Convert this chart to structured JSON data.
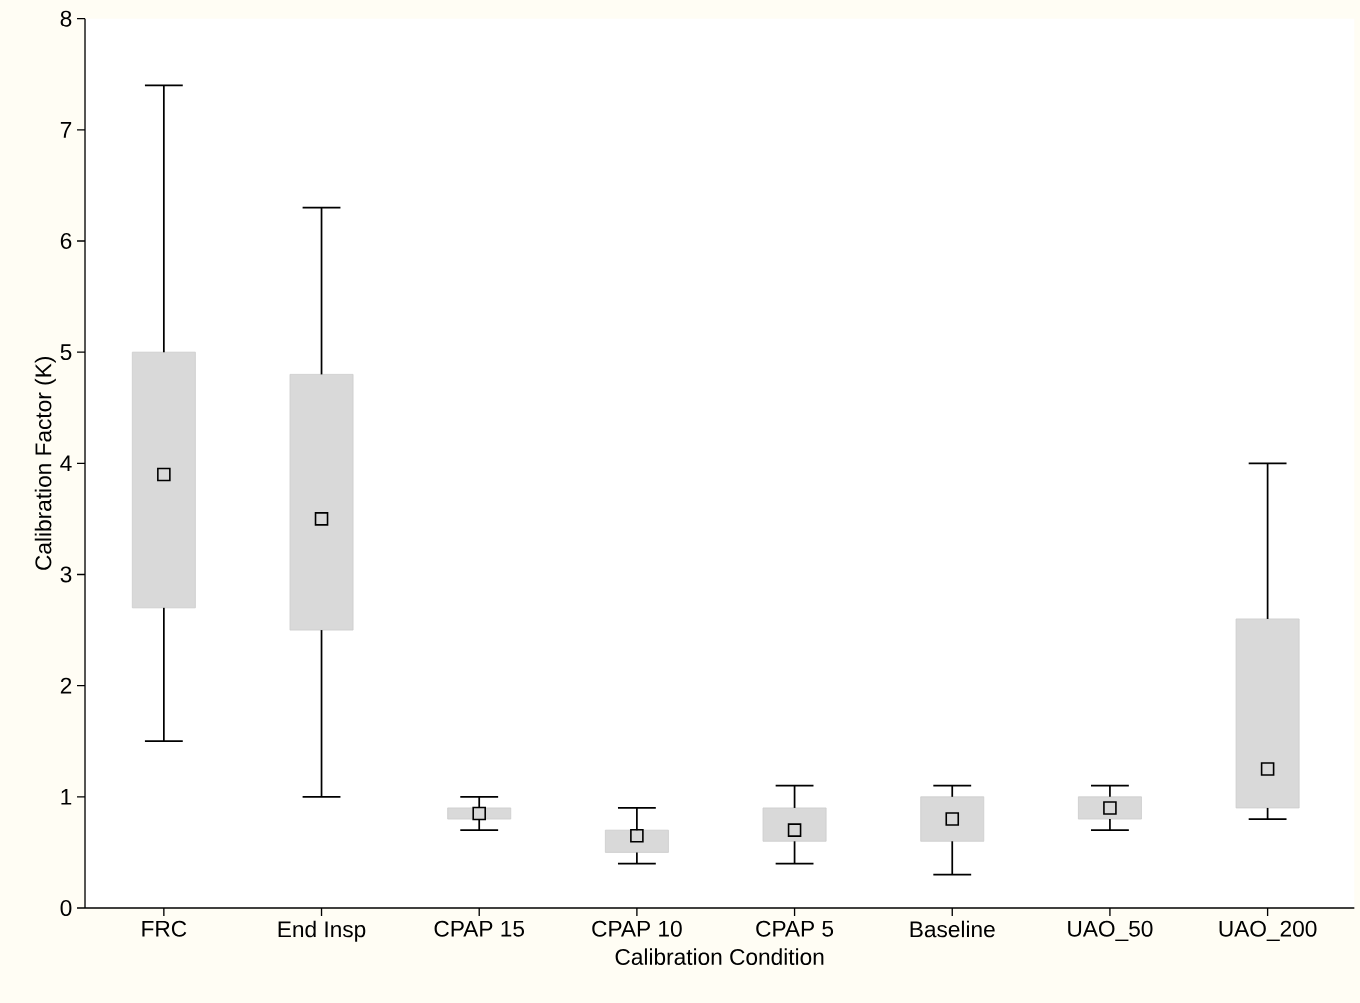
{
  "chart_data": {
    "type": "box",
    "xlabel": "Calibration Condition",
    "ylabel": "Calibration Factor (K)",
    "categories": [
      "FRC",
      "End Insp",
      "CPAP 15",
      "CPAP 10",
      "CPAP 5",
      "Baseline",
      "UAO_50",
      "UAO_200"
    ],
    "boxes": [
      {
        "low": 1.5,
        "q1": 2.7,
        "median": 3.9,
        "q3": 5.0,
        "high": 7.4
      },
      {
        "low": 1.0,
        "q1": 2.5,
        "median": 3.5,
        "q3": 4.8,
        "high": 6.3
      },
      {
        "low": 0.7,
        "q1": 0.8,
        "median": 0.85,
        "q3": 0.9,
        "high": 1.0
      },
      {
        "low": 0.4,
        "q1": 0.5,
        "median": 0.65,
        "q3": 0.7,
        "high": 0.9
      },
      {
        "low": 0.4,
        "q1": 0.6,
        "median": 0.7,
        "q3": 0.9,
        "high": 1.1
      },
      {
        "low": 0.3,
        "q1": 0.6,
        "median": 0.8,
        "q3": 1.0,
        "high": 1.1
      },
      {
        "low": 0.7,
        "q1": 0.8,
        "median": 0.9,
        "q3": 1.0,
        "high": 1.1
      },
      {
        "low": 0.8,
        "q1": 0.9,
        "median": 1.25,
        "q3": 2.6,
        "high": 4.0
      }
    ],
    "color": "#d9d9d9",
    "marker": "square",
    "ylim": [
      0,
      8
    ],
    "yticks": [
      0,
      1,
      2,
      3,
      4,
      5,
      6,
      7,
      8
    ]
  }
}
